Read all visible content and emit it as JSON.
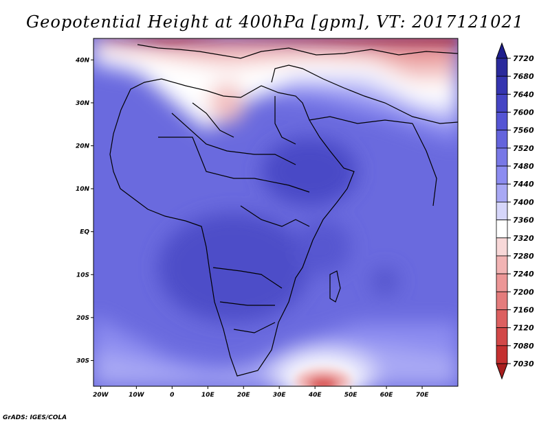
{
  "title": "Geopotential Height at 400hPa [gpm], VT: 2017121021",
  "credit": "GrADS: IGES/COLA",
  "chart_data": {
    "type": "heatmap",
    "variable": "Geopotential Height at 400hPa [gpm]",
    "valid_time": "2017121021",
    "x_ticks": [
      "20W",
      "10W",
      "0",
      "10E",
      "20E",
      "30E",
      "40E",
      "50E",
      "60E",
      "70E"
    ],
    "x_tick_values": [
      -20,
      -10,
      0,
      10,
      20,
      30,
      40,
      50,
      60,
      70
    ],
    "y_ticks": [
      "40N",
      "30N",
      "20N",
      "10N",
      "EQ",
      "10S",
      "20S",
      "30S"
    ],
    "y_tick_values": [
      40,
      30,
      20,
      10,
      0,
      -10,
      -20,
      -30
    ],
    "lon_range": [
      -22,
      80
    ],
    "lat_range": [
      -36,
      45
    ],
    "colorbar": {
      "levels": [
        7720,
        7680,
        7640,
        7600,
        7560,
        7520,
        7480,
        7440,
        7400,
        7360,
        7320,
        7280,
        7240,
        7200,
        7160,
        7120,
        7080,
        7030
      ],
      "colors": [
        "#2a2a9c",
        "#3535b0",
        "#4545c4",
        "#5555d4",
        "#6464dc",
        "#7878e6",
        "#8c8cf0",
        "#a8a8f4",
        "#d6d6fa",
        "#ffffff",
        "#f8d8d8",
        "#f2b4b4",
        "#ec9696",
        "#e47c7c",
        "#dc6060",
        "#d24848",
        "#c43030",
        "#a81e1e"
      ],
      "extend": "both"
    }
  }
}
